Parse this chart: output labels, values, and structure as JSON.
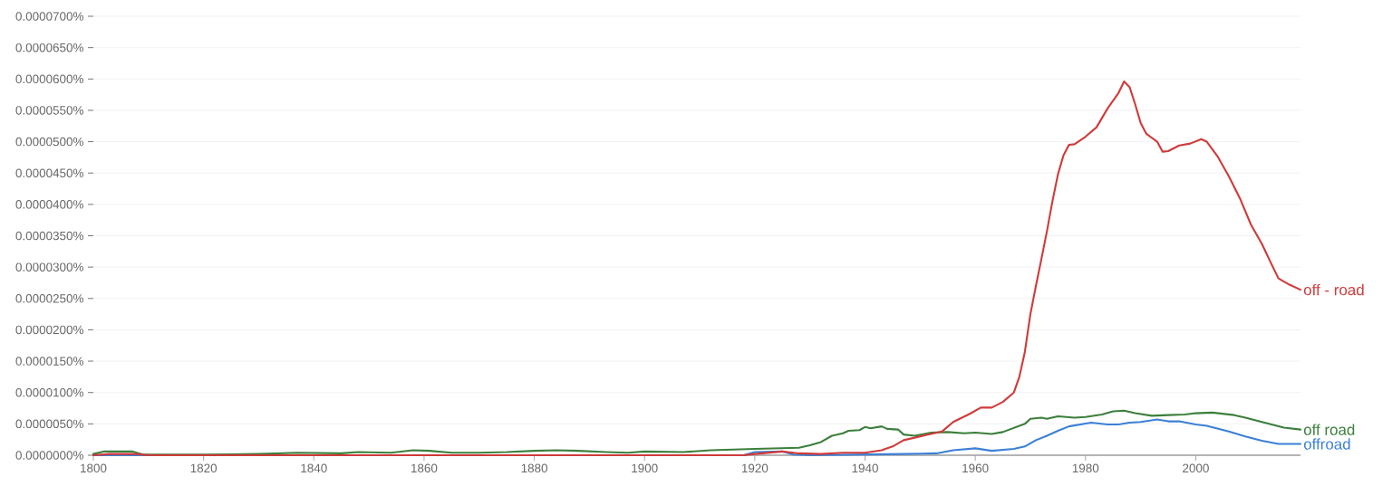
{
  "chart_data": {
    "type": "line",
    "marker": "none",
    "grid": "y",
    "xlim": [
      1800,
      2019
    ],
    "xticks": [
      1800,
      1820,
      1840,
      1860,
      1880,
      1900,
      1920,
      1940,
      1960,
      1980,
      2000
    ],
    "ylim": [
      0,
      7e-05
    ],
    "yticks": [
      {
        "value": 0,
        "label": "0.0000000%"
      },
      {
        "value": 5e-06,
        "label": "0.0000050%"
      },
      {
        "value": 1e-05,
        "label": "0.0000100%"
      },
      {
        "value": 1.5e-05,
        "label": "0.0000150%"
      },
      {
        "value": 2e-05,
        "label": "0.0000200%"
      },
      {
        "value": 2.5e-05,
        "label": "0.0000250%"
      },
      {
        "value": 3e-05,
        "label": "0.0000300%"
      },
      {
        "value": 3.5e-05,
        "label": "0.0000350%"
      },
      {
        "value": 4e-05,
        "label": "0.0000400%"
      },
      {
        "value": 4.5e-05,
        "label": "0.0000450%"
      },
      {
        "value": 5e-05,
        "label": "0.0000500%"
      },
      {
        "value": 5.5e-05,
        "label": "0.0000550%"
      },
      {
        "value": 6e-05,
        "label": "0.0000600%"
      },
      {
        "value": 6.5e-05,
        "label": "0.0000650%"
      },
      {
        "value": 7e-05,
        "label": "0.0000700%"
      }
    ],
    "series": [
      {
        "name": "off - road",
        "color": "#d03a3a",
        "x": [
          1800,
          1803,
          1808,
          1810,
          1918,
          1920,
          1925,
          1928,
          1932,
          1936,
          1940,
          1943,
          1945,
          1947,
          1951,
          1954,
          1956,
          1959,
          1961,
          1963,
          1965,
          1967,
          1968,
          1969,
          1970,
          1971,
          1972,
          1973,
          1974,
          1975,
          1976,
          1977,
          1978,
          1980,
          1982,
          1984,
          1986,
          1987,
          1988,
          1989,
          1990,
          1991,
          1993,
          1994,
          1995,
          1997,
          1999,
          2001,
          2002,
          2004,
          2006,
          2008,
          2010,
          2012,
          2014,
          2015,
          2017,
          2019
        ],
        "values": [
          0,
          2e-07,
          2e-07,
          0,
          0,
          2e-07,
          6e-07,
          3e-07,
          2e-07,
          4e-07,
          4e-07,
          8e-07,
          1.4e-06,
          2.4e-06,
          3.2e-06,
          3.8e-06,
          5.3e-06,
          6.6e-06,
          7.6e-06,
          7.6e-06,
          8.5e-06,
          1e-05,
          1.25e-05,
          1.65e-05,
          2.25e-05,
          2.7e-05,
          3.13e-05,
          3.57e-05,
          4.05e-05,
          4.48e-05,
          4.78e-05,
          4.95e-05,
          4.96e-05,
          5.08e-05,
          5.23e-05,
          5.53e-05,
          5.78e-05,
          5.96e-05,
          5.87e-05,
          5.6e-05,
          5.3e-05,
          5.13e-05,
          5e-05,
          4.84e-05,
          4.85e-05,
          4.94e-05,
          4.97e-05,
          5.04e-05,
          5e-05,
          4.76e-05,
          4.45e-05,
          4.1e-05,
          3.68e-05,
          3.37e-05,
          3e-05,
          2.82e-05,
          2.72e-05,
          2.64e-05
        ]
      },
      {
        "name": "off road",
        "color": "#3b7f3b",
        "x": [
          1800,
          1802,
          1807,
          1809,
          1820,
          1830,
          1837,
          1845,
          1848,
          1854,
          1858,
          1861,
          1865,
          1870,
          1875,
          1880,
          1884,
          1888,
          1893,
          1897,
          1900,
          1907,
          1912,
          1920,
          1928,
          1930,
          1932,
          1934,
          1936,
          1937,
          1939,
          1940,
          1941,
          1943,
          1944,
          1946,
          1947,
          1949,
          1952,
          1955,
          1958,
          1960,
          1963,
          1965,
          1969,
          1970,
          1972,
          1973,
          1975,
          1978,
          1980,
          1983,
          1985,
          1987,
          1989,
          1992,
          1995,
          1998,
          2000,
          2003,
          2007,
          2009,
          2012,
          2016,
          2019
        ],
        "values": [
          2e-07,
          6e-07,
          6e-07,
          1e-07,
          1e-07,
          2e-07,
          4e-07,
          3e-07,
          5e-07,
          4e-07,
          8e-07,
          7e-07,
          4e-07,
          4e-07,
          5e-07,
          7e-07,
          8e-07,
          7e-07,
          5e-07,
          4e-07,
          6e-07,
          5e-07,
          8e-07,
          1e-06,
          1.2e-06,
          1.6e-06,
          2.1e-06,
          3.1e-06,
          3.5e-06,
          3.9e-06,
          4e-06,
          4.5e-06,
          4.3e-06,
          4.6e-06,
          4.2e-06,
          4.1e-06,
          3.3e-06,
          3.1e-06,
          3.6e-06,
          3.7e-06,
          3.5e-06,
          3.6e-06,
          3.4e-06,
          3.7e-06,
          5e-06,
          5.8e-06,
          6e-06,
          5.8e-06,
          6.2e-06,
          6e-06,
          6.1e-06,
          6.5e-06,
          7e-06,
          7.1e-06,
          6.7e-06,
          6.3e-06,
          6.4e-06,
          6.5e-06,
          6.7e-06,
          6.8e-06,
          6.4e-06,
          6e-06,
          5.3e-06,
          4.4e-06,
          4.1e-06
        ]
      },
      {
        "name": "offroad",
        "color": "#3b80d6",
        "x": [
          1800,
          1918,
          1920,
          1925,
          1927,
          1930,
          1947,
          1953,
          1956,
          1960,
          1963,
          1967,
          1969,
          1971,
          1973,
          1975,
          1977,
          1979,
          1981,
          1984,
          1986,
          1988,
          1990,
          1993,
          1995,
          1997,
          2000,
          2002,
          2006,
          2009,
          2012,
          2015,
          2019
        ],
        "values": [
          0,
          0,
          5e-07,
          6e-07,
          1e-07,
          0,
          2e-07,
          3e-07,
          8e-07,
          1.1e-06,
          7e-07,
          1e-06,
          1.4e-06,
          2.4e-06,
          3.1e-06,
          3.9e-06,
          4.6e-06,
          4.9e-06,
          5.2e-06,
          4.9e-06,
          4.9e-06,
          5.2e-06,
          5.3e-06,
          5.7e-06,
          5.4e-06,
          5.4e-06,
          4.9e-06,
          4.7e-06,
          3.8e-06,
          3e-06,
          2.3e-06,
          1.8e-06,
          1.8e-06
        ]
      }
    ]
  }
}
